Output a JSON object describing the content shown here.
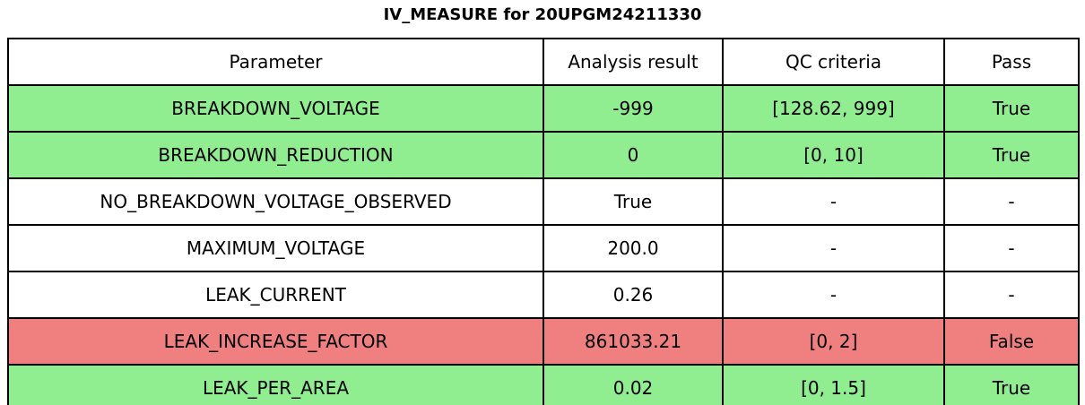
{
  "title": "IV_MEASURE for 20UPGM24211330",
  "colors": {
    "pass": "#90ee90",
    "fail": "#f08080",
    "neutral": "#ffffff",
    "border": "#000000",
    "text": "#000000"
  },
  "chart_data": {
    "type": "table",
    "title": "IV_MEASURE for 20UPGM24211330",
    "columns": [
      "Parameter",
      "Analysis result",
      "QC criteria",
      "Pass"
    ],
    "rows": [
      {
        "parameter": "BREAKDOWN_VOLTAGE",
        "analysis_result": "-999",
        "qc_criteria": "[128.62, 999]",
        "pass": "True",
        "status": "pass"
      },
      {
        "parameter": "BREAKDOWN_REDUCTION",
        "analysis_result": "0",
        "qc_criteria": "[0, 10]",
        "pass": "True",
        "status": "pass"
      },
      {
        "parameter": "NO_BREAKDOWN_VOLTAGE_OBSERVED",
        "analysis_result": "True",
        "qc_criteria": "-",
        "pass": "-",
        "status": "neutral"
      },
      {
        "parameter": "MAXIMUM_VOLTAGE",
        "analysis_result": "200.0",
        "qc_criteria": "-",
        "pass": "-",
        "status": "neutral"
      },
      {
        "parameter": "LEAK_CURRENT",
        "analysis_result": "0.26",
        "qc_criteria": "-",
        "pass": "-",
        "status": "neutral"
      },
      {
        "parameter": "LEAK_INCREASE_FACTOR",
        "analysis_result": "861033.21",
        "qc_criteria": "[0, 2]",
        "pass": "False",
        "status": "fail"
      },
      {
        "parameter": "LEAK_PER_AREA",
        "analysis_result": "0.02",
        "qc_criteria": "[0, 1.5]",
        "pass": "True",
        "status": "pass"
      }
    ],
    "legend_position": "none",
    "grid": "full-cell-borders"
  }
}
